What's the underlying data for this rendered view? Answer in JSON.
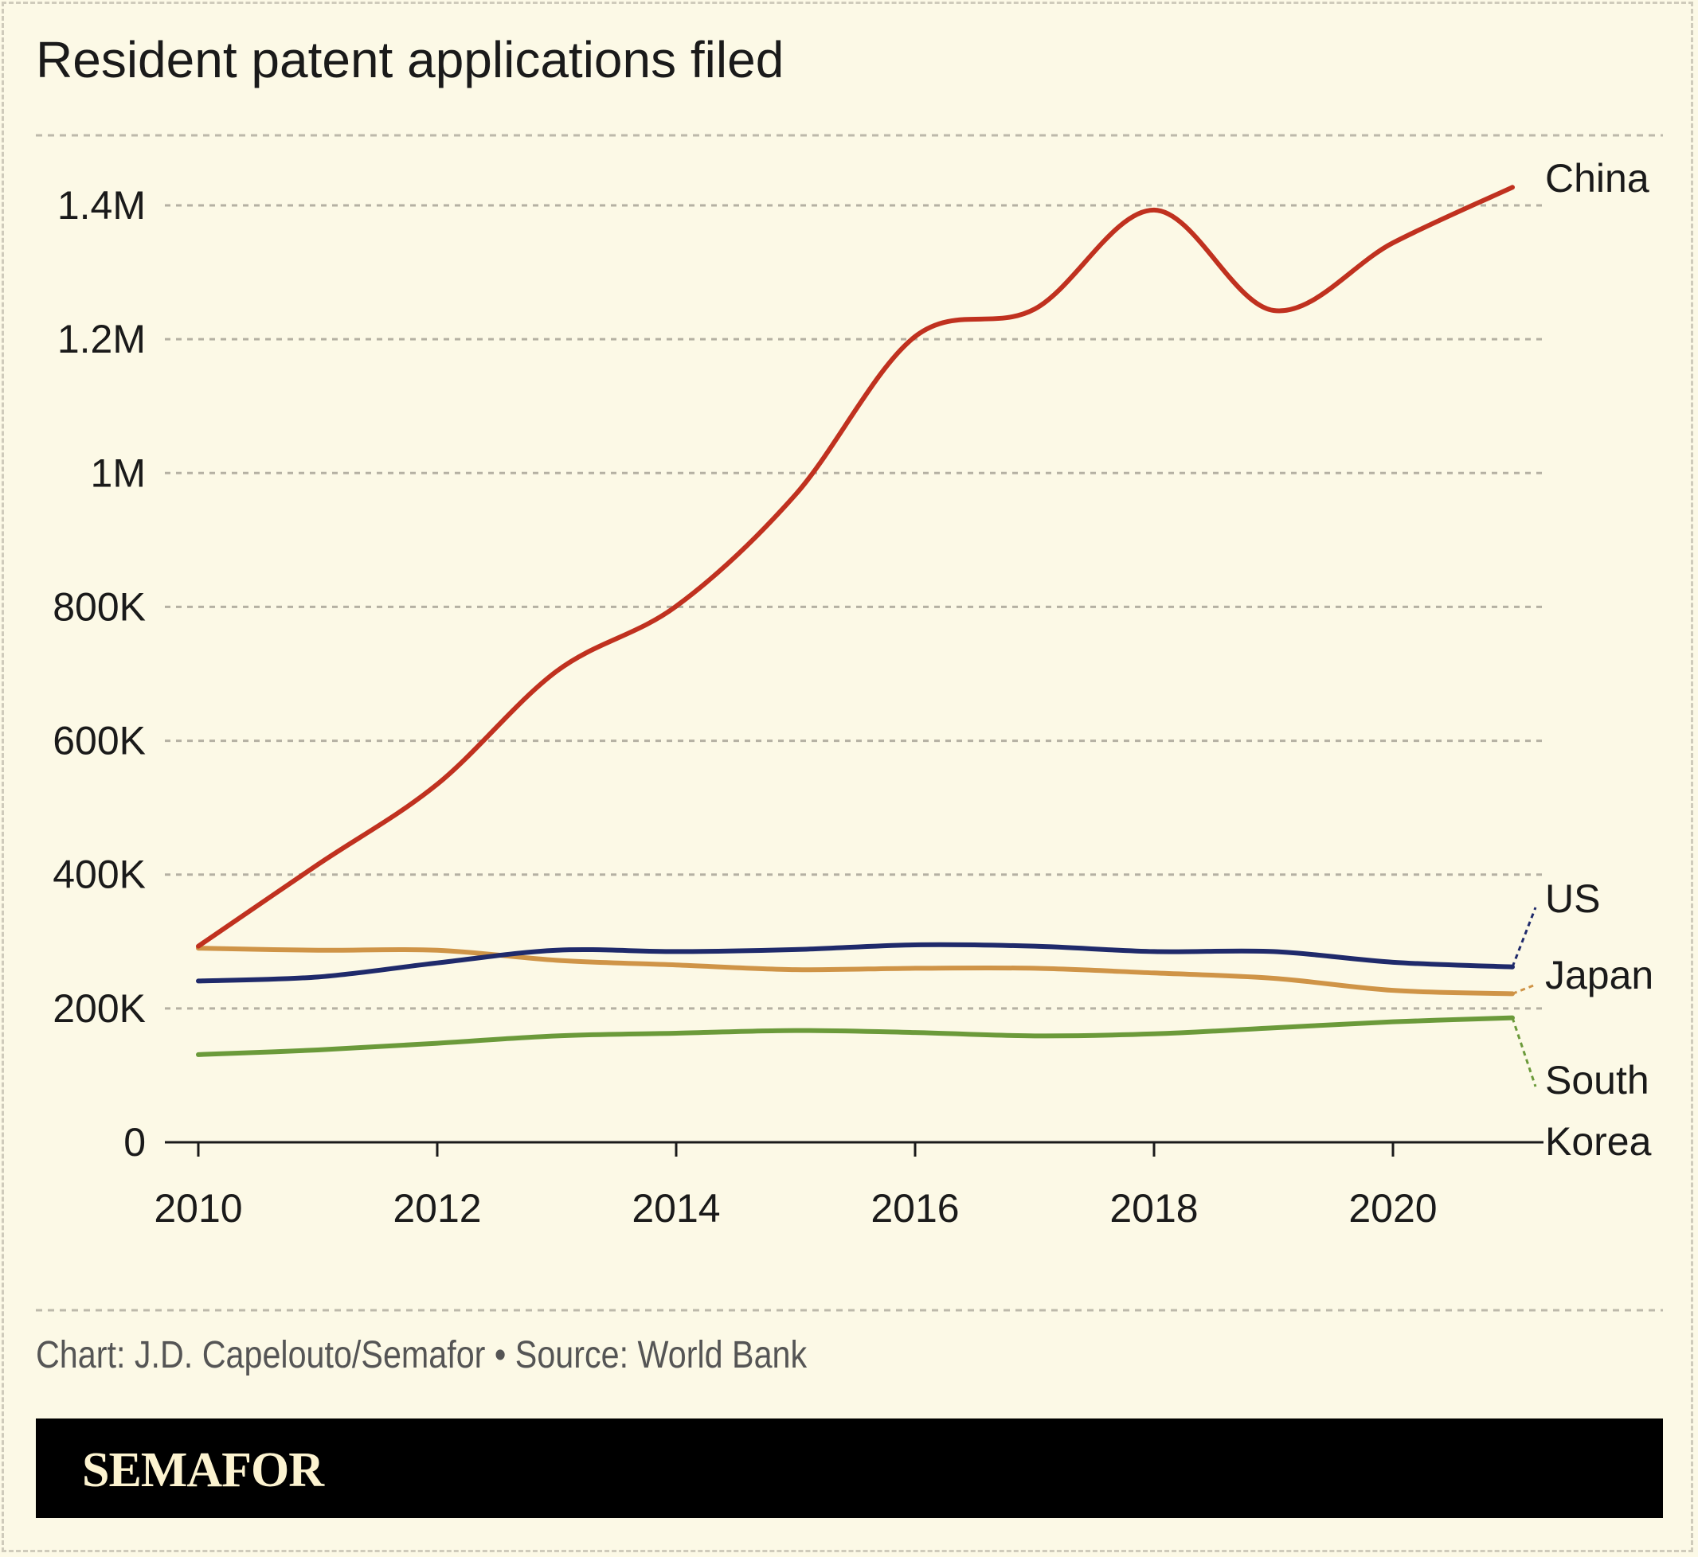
{
  "title": "Resident patent applications filed",
  "source": "Chart: J.D. Capelouto/Semafor • Source: World Bank",
  "brand": "SEMAFOR",
  "chart_data": {
    "type": "line",
    "title": "Resident patent applications filed",
    "x": [
      2010,
      2011,
      2012,
      2013,
      2014,
      2015,
      2016,
      2017,
      2018,
      2019,
      2020,
      2021
    ],
    "xlim": [
      2010,
      2021
    ],
    "ylim": [
      0,
      1400000
    ],
    "xticks": [
      "2010",
      "2012",
      "2014",
      "2016",
      "2018",
      "2020"
    ],
    "yticks": [
      {
        "value": 0,
        "label": "0"
      },
      {
        "value": 200000,
        "label": "200K"
      },
      {
        "value": 400000,
        "label": "400K"
      },
      {
        "value": 600000,
        "label": "600K"
      },
      {
        "value": 800000,
        "label": "800K"
      },
      {
        "value": 1000000,
        "label": "1M"
      },
      {
        "value": 1200000,
        "label": "1.2M"
      },
      {
        "value": 1400000,
        "label": "1.4M"
      }
    ],
    "grid": true,
    "legend": "direct labels at line ends",
    "series": [
      {
        "name": "China",
        "color": "#c0311f",
        "values": [
          293000,
          415000,
          535000,
          704000,
          801000,
          968000,
          1204000,
          1245000,
          1393000,
          1243000,
          1344000,
          1427000
        ]
      },
      {
        "name": "US",
        "color": "#1f2a6b",
        "values": [
          241000,
          247000,
          268000,
          287000,
          285000,
          288000,
          295000,
          293000,
          285000,
          285000,
          269000,
          262000
        ]
      },
      {
        "name": "Japan",
        "color": "#cf9447",
        "values": [
          290000,
          287000,
          287000,
          272000,
          265000,
          258000,
          260000,
          260000,
          253000,
          245000,
          227000,
          222000
        ]
      },
      {
        "name": "South Korea",
        "label_lines": [
          "South",
          "Korea"
        ],
        "color": "#6b9a3a",
        "values": [
          131000,
          138000,
          148000,
          159000,
          163000,
          167000,
          164000,
          159000,
          162000,
          171000,
          180000,
          186000
        ]
      }
    ]
  }
}
